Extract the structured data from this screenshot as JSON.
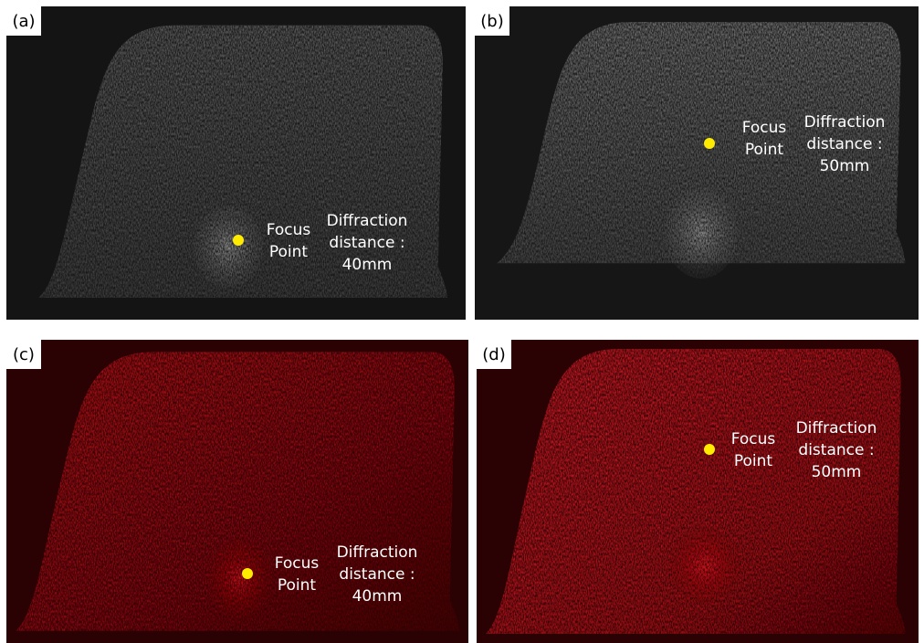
{
  "panels": [
    {
      "label": "(a)",
      "focus": [
        "Focus",
        "Point"
      ],
      "diffraction": [
        "Diffraction",
        "distance :",
        "40mm"
      ]
    },
    {
      "label": "(b)",
      "focus": [
        "Focus",
        "Point"
      ],
      "diffraction": [
        "Diffraction",
        "distance :",
        "50mm"
      ]
    },
    {
      "label": "(c)",
      "focus": [
        "Focus",
        "Point"
      ],
      "diffraction": [
        "Diffraction",
        "distance :",
        "40mm"
      ]
    },
    {
      "label": "(d)",
      "focus": [
        "Focus",
        "Point"
      ],
      "diffraction": [
        "Diffraction",
        "distance :",
        "50mm"
      ]
    }
  ]
}
